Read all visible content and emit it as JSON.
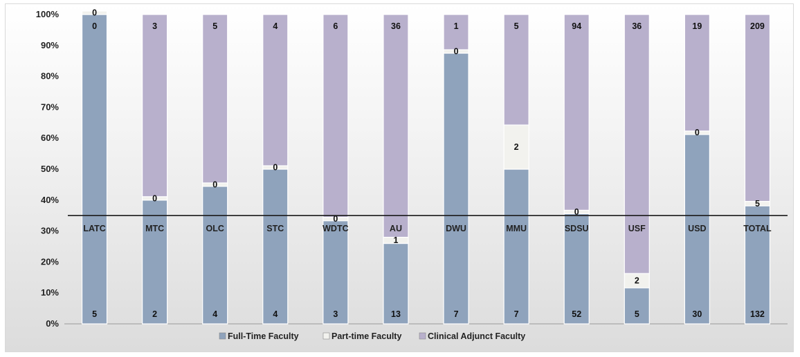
{
  "chart_data": {
    "type": "bar",
    "stacked": "percent",
    "title": "",
    "xlabel": "",
    "ylabel": "",
    "ylim": [
      0,
      100
    ],
    "y_ticks": [
      "0%",
      "10%",
      "20%",
      "30%",
      "40%",
      "50%",
      "60%",
      "70%",
      "80%",
      "90%",
      "100%"
    ],
    "categories": [
      "LATC",
      "MTC",
      "OLC",
      "STC",
      "WDTC",
      "AU",
      "DWU",
      "MMU",
      "SDSU",
      "USF",
      "USD",
      "TOTAL"
    ],
    "series": [
      {
        "name": "Full-Time Faculty",
        "values": [
          5,
          2,
          4,
          4,
          3,
          13,
          7,
          7,
          52,
          5,
          30,
          132
        ],
        "color": "#8fa3bc"
      },
      {
        "name": "Part-time Faculty",
        "values": [
          0,
          0,
          0,
          0,
          0,
          1,
          0,
          2,
          0,
          2,
          0,
          5
        ],
        "color": "#f2f2ee"
      },
      {
        "name": "Clinical Adjunct Faculty",
        "values": [
          0,
          3,
          5,
          4,
          6,
          36,
          1,
          5,
          94,
          36,
          19,
          209
        ],
        "color": "#b8b0cc"
      }
    ],
    "reference_line": {
      "value": 35
    },
    "grid": false,
    "legend": "bottom"
  }
}
